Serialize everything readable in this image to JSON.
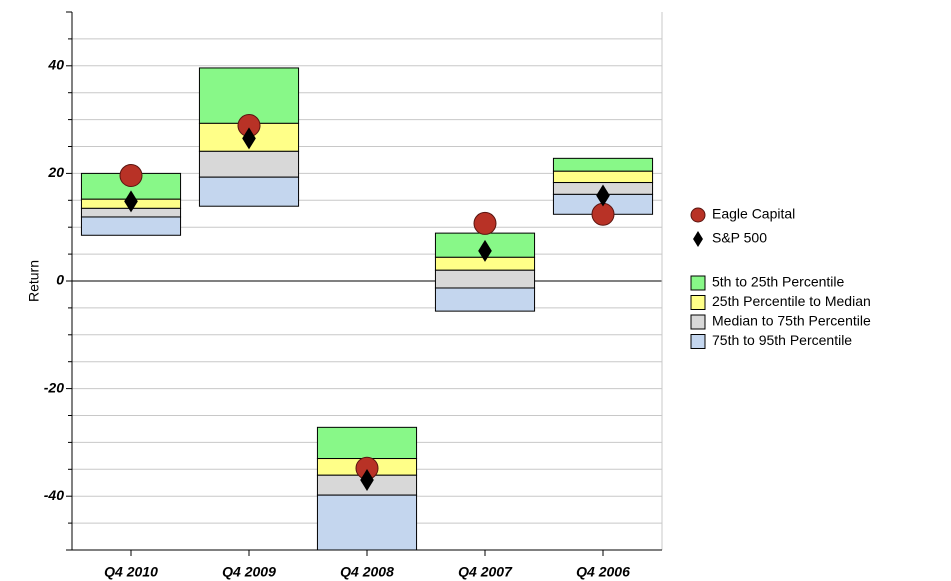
{
  "chart_data": {
    "type": "floating_box",
    "y_label": "Return",
    "categories": [
      "Q4 2010",
      "Q4 2009",
      "Q4 2008",
      "Q4 2007",
      "Q4 2006"
    ],
    "ylim": [
      -50,
      50
    ],
    "yticks": [
      -40,
      -20,
      0,
      20,
      40
    ],
    "minor_yticks": [
      -45,
      -35,
      -30,
      -25,
      -15,
      -10,
      -5,
      5,
      10,
      15,
      25,
      30,
      35,
      45
    ],
    "grid": true,
    "legend": "right",
    "series": [
      {
        "name": "5th to 25th Percentile",
        "color": "#88f888",
        "high": [
          20.0,
          39.6,
          -27.2,
          8.9,
          22.8
        ],
        "low": [
          15.2,
          29.3,
          -33.0,
          4.4,
          20.4
        ]
      },
      {
        "name": "25th Percentile to Median",
        "color": "#ffff88",
        "high": [
          15.2,
          29.3,
          -33.0,
          4.4,
          20.4
        ],
        "low": [
          13.5,
          24.1,
          -36.1,
          2.0,
          18.3
        ]
      },
      {
        "name": "Median to 75th Percentile",
        "color": "#d8d8d8",
        "high": [
          13.5,
          24.1,
          -36.1,
          2.0,
          18.3
        ],
        "low": [
          11.9,
          19.3,
          -39.8,
          -1.3,
          16.1
        ]
      },
      {
        "name": "75th to 95th Percentile",
        "color": "#c4d6ee",
        "high": [
          11.9,
          19.3,
          -39.8,
          -1.3,
          16.1
        ],
        "low": [
          8.5,
          13.9,
          -50,
          -5.6,
          12.4
        ]
      }
    ],
    "points": [
      {
        "name": "Eagle Capital",
        "color": "#b83226",
        "marker": "circle",
        "values": [
          19.6,
          28.9,
          -34.8,
          10.7,
          12.4
        ]
      },
      {
        "name": "S&P 500",
        "color": "#000000",
        "marker": "diamond",
        "values": [
          14.8,
          26.5,
          -37.0,
          5.6,
          15.9
        ]
      }
    ]
  }
}
